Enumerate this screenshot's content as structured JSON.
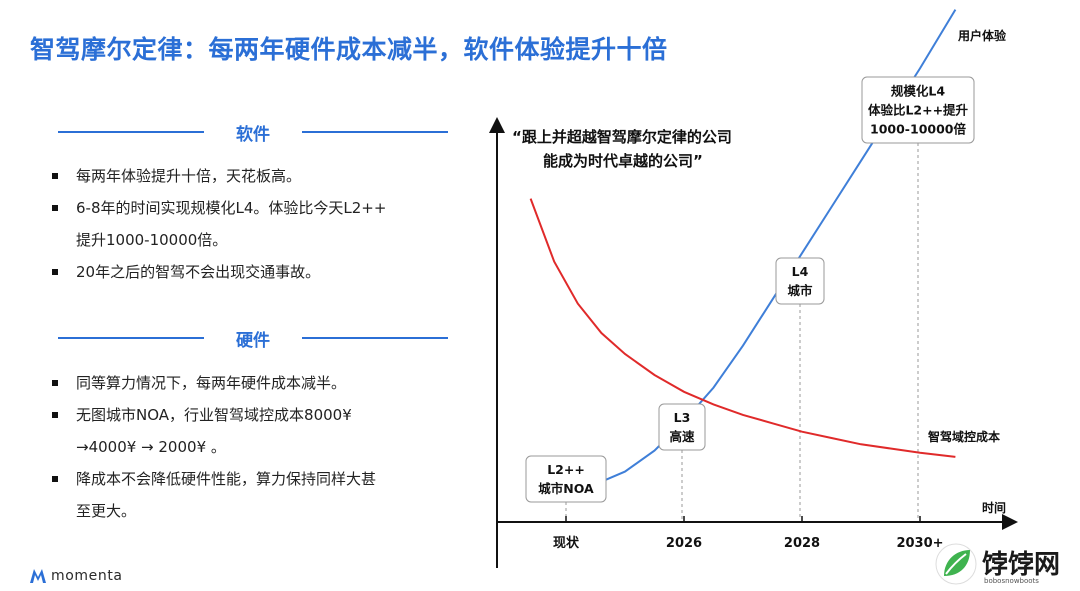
{
  "title": "智驾摩尔定律：每两年硬件成本减半，软件体验提升十倍",
  "software": {
    "heading": "软件",
    "bullets": [
      "每两年体验提升十倍，天花板高。",
      "6-8年的时间实现规模化L4。体验比今天L2++",
      "提升1000-10000倍。",
      "20年之后的智驾不会出现交通事故。"
    ]
  },
  "hardware": {
    "heading": "硬件",
    "bullets": [
      "同等算力情况下，每两年硬件成本减半。",
      "无图城市NOA，行业智驾域控成本8000¥",
      "→4000¥ → 2000¥ 。",
      "降成本不会降低硬件性能，算力保持同样大甚",
      "至更大。"
    ]
  },
  "brand": {
    "name": "momenta",
    "icon": "momenta-logo-icon"
  },
  "watermark": {
    "text": "饽饽网",
    "sub": "bobosnowboots",
    "icon": "leaf-logo-icon"
  },
  "chart_data": {
    "type": "line",
    "quote_line1": "“跟上并超越智驾摩尔定律的公司",
    "quote_line2": "能成为时代卓越的公司”",
    "x_categories": [
      "现状",
      "2026",
      "2028",
      "2030+"
    ],
    "xlabel": "时间",
    "ylabel": "",
    "series": [
      {
        "name": "用户体验",
        "color": "#3f7fd8",
        "x": [
          0,
          0.25,
          0.5,
          0.75,
          1.0,
          1.25,
          1.5,
          1.75,
          2.0,
          2.25,
          2.5,
          2.75,
          3.0,
          3.3
        ],
        "y": [
          0.07,
          0.09,
          0.12,
          0.17,
          0.24,
          0.32,
          0.42,
          0.53,
          0.64,
          0.75,
          0.86,
          0.97,
          1.08,
          1.22
        ]
      },
      {
        "name": "智驾域控成本",
        "color": "#e02a2a",
        "x": [
          -0.3,
          -0.1,
          0.1,
          0.3,
          0.5,
          0.75,
          1.0,
          1.25,
          1.5,
          1.75,
          2.0,
          2.25,
          2.5,
          2.75,
          3.0,
          3.3
        ],
        "y": [
          0.77,
          0.62,
          0.52,
          0.45,
          0.4,
          0.35,
          0.31,
          0.28,
          0.255,
          0.235,
          0.215,
          0.2,
          0.185,
          0.175,
          0.165,
          0.155
        ]
      }
    ],
    "milestones": [
      {
        "lines": [
          "L2++",
          "城市NOA"
        ]
      },
      {
        "lines": [
          "L3",
          "高速"
        ]
      },
      {
        "lines": [
          "L4",
          "城市"
        ]
      },
      {
        "lines": [
          "规模化L4",
          "体验比L2++提升",
          "1000-10000倍"
        ]
      }
    ]
  }
}
